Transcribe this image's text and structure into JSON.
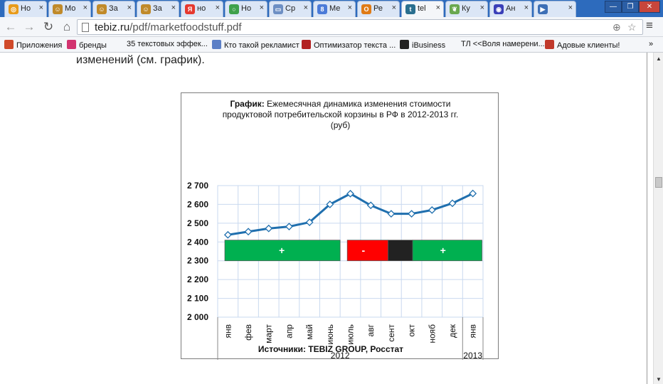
{
  "tabs": [
    {
      "label": "Но",
      "icon": "chrome-site-icon",
      "color": "#e89b1a",
      "glyph": "◎"
    },
    {
      "label": "Мо",
      "icon": "hobbit-icon",
      "color": "#c08a2a",
      "glyph": "☺"
    },
    {
      "label": "За",
      "icon": "hobbit-icon",
      "color": "#c08a2a",
      "glyph": "☺"
    },
    {
      "label": "За",
      "icon": "hobbit-icon",
      "color": "#c08a2a",
      "glyph": "☺"
    },
    {
      "label": "но",
      "icon": "yandex-icon",
      "color": "#e6392f",
      "glyph": "Я"
    },
    {
      "label": "Но",
      "icon": "ring-icon",
      "color": "#3fa14b",
      "glyph": "○"
    },
    {
      "label": "Ср",
      "icon": "image-icon",
      "color": "#6d8fc4",
      "glyph": "▭"
    },
    {
      "label": "Ме",
      "icon": "google-plus-icon",
      "color": "#4b7bd8",
      "glyph": "8"
    },
    {
      "label": "Ре",
      "icon": "ookia-icon",
      "color": "#e07b15",
      "glyph": "O"
    },
    {
      "label": "tel",
      "icon": "tebiz-icon",
      "color": "#2a6f8f",
      "glyph": "t"
    },
    {
      "label": "Ку",
      "icon": "leaf-icon",
      "color": "#6aa84f",
      "glyph": "❦"
    },
    {
      "label": "Ан",
      "icon": "circle-logo-icon",
      "color": "#3a3fb8",
      "glyph": "◉"
    },
    {
      "label": "",
      "icon": "media-play-icon",
      "color": "#3d6fb6",
      "glyph": "▶"
    }
  ],
  "url": {
    "domain": "tebiz.ru",
    "path": "/pdf/marketfoodstuff.pdf"
  },
  "bookmarks": [
    {
      "label": "Приложения",
      "icon": "apps-grid-icon",
      "color": "#d04a2a"
    },
    {
      "label": "бренды",
      "icon": "brand-icon",
      "color": "#d2336f"
    },
    {
      "label": "35 текстовых эффек...",
      "icon": "",
      "color": ""
    },
    {
      "label": "Кто такой рекламист",
      "icon": "diamond-icon",
      "color": "#5b7fc6"
    },
    {
      "label": "Оптимизатор текста ...",
      "icon": "seo-icon",
      "color": "#b22222"
    },
    {
      "label": "iBusiness",
      "icon": "ibusiness-icon",
      "color": "#222222"
    },
    {
      "label": "ТЛ <<Воля намерени...",
      "icon": "",
      "color": ""
    },
    {
      "label": "Адовые клиенты!",
      "icon": "fox-icon",
      "color": "#c0392b"
    }
  ],
  "lead_text": "изменений (см. график).",
  "figure": {
    "title_lead": "График:",
    "title_rest": " Ежемесячная динамика изменения стоимости",
    "title_line2": "продуктовой потребительской корзины в РФ в 2012-2013 гг.",
    "title_line3": "(руб)",
    "source": "Источники: TEBIZ GROUP, Росстат"
  },
  "chart_data": {
    "type": "line",
    "categories": [
      "янв",
      "фев",
      "март",
      "апр",
      "май",
      "июнь",
      "июль",
      "авг",
      "сент",
      "окт",
      "нояб",
      "дек",
      "янв"
    ],
    "series": [
      {
        "values": [
          2438,
          2455,
          2472,
          2482,
          2505,
          2600,
          2657,
          2595,
          2550,
          2550,
          2570,
          2606,
          2658
        ],
        "color": "#1f6fae"
      }
    ],
    "year_groups": [
      {
        "label": "2012",
        "from": 0,
        "to": 11
      },
      {
        "label": "2013",
        "from": 12,
        "to": 12
      }
    ],
    "ytick_labels": [
      "2 000",
      "2 100",
      "2 200",
      "2 300",
      "2 400",
      "2 500",
      "2 600",
      "2 700"
    ],
    "ylim": [
      2000,
      2700
    ],
    "grid": true,
    "bands": [
      {
        "label": "+",
        "from": 0,
        "to": 6,
        "color": "#00b050"
      },
      {
        "label": "-",
        "from": 6,
        "to": 8,
        "color": "#ff0000"
      },
      {
        "label": "",
        "from": 8,
        "to": 9.2,
        "color": "#222222"
      },
      {
        "label": "+",
        "from": 9.2,
        "to": 12.6,
        "color": "#00b050"
      }
    ],
    "band_range": [
      2300,
      2410
    ]
  }
}
